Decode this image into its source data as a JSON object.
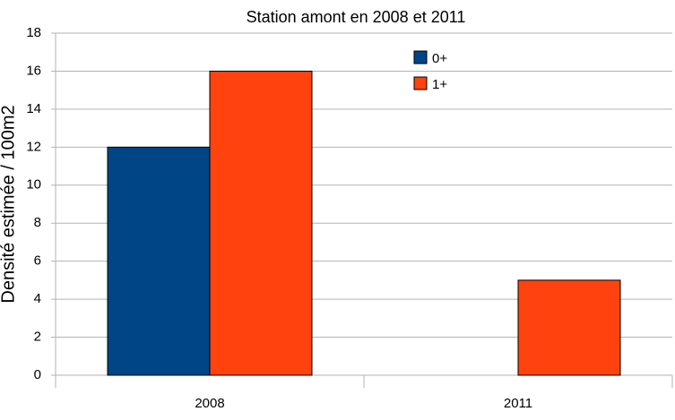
{
  "chart_data": {
    "type": "bar",
    "title": "Station amont en 2008 et 2011",
    "ylabel": "Densité estimée / 100m2",
    "categories": [
      "2008",
      "2011"
    ],
    "series": [
      {
        "name": "0+",
        "color": "#004586",
        "values": [
          12,
          0
        ]
      },
      {
        "name": "1+",
        "color": "#ff420e",
        "values": [
          16,
          5
        ]
      }
    ],
    "ylim": [
      0,
      18
    ],
    "yticks": [
      0,
      2,
      4,
      6,
      8,
      10,
      12,
      14,
      16,
      18
    ],
    "grid": true,
    "legend": "top-right"
  }
}
